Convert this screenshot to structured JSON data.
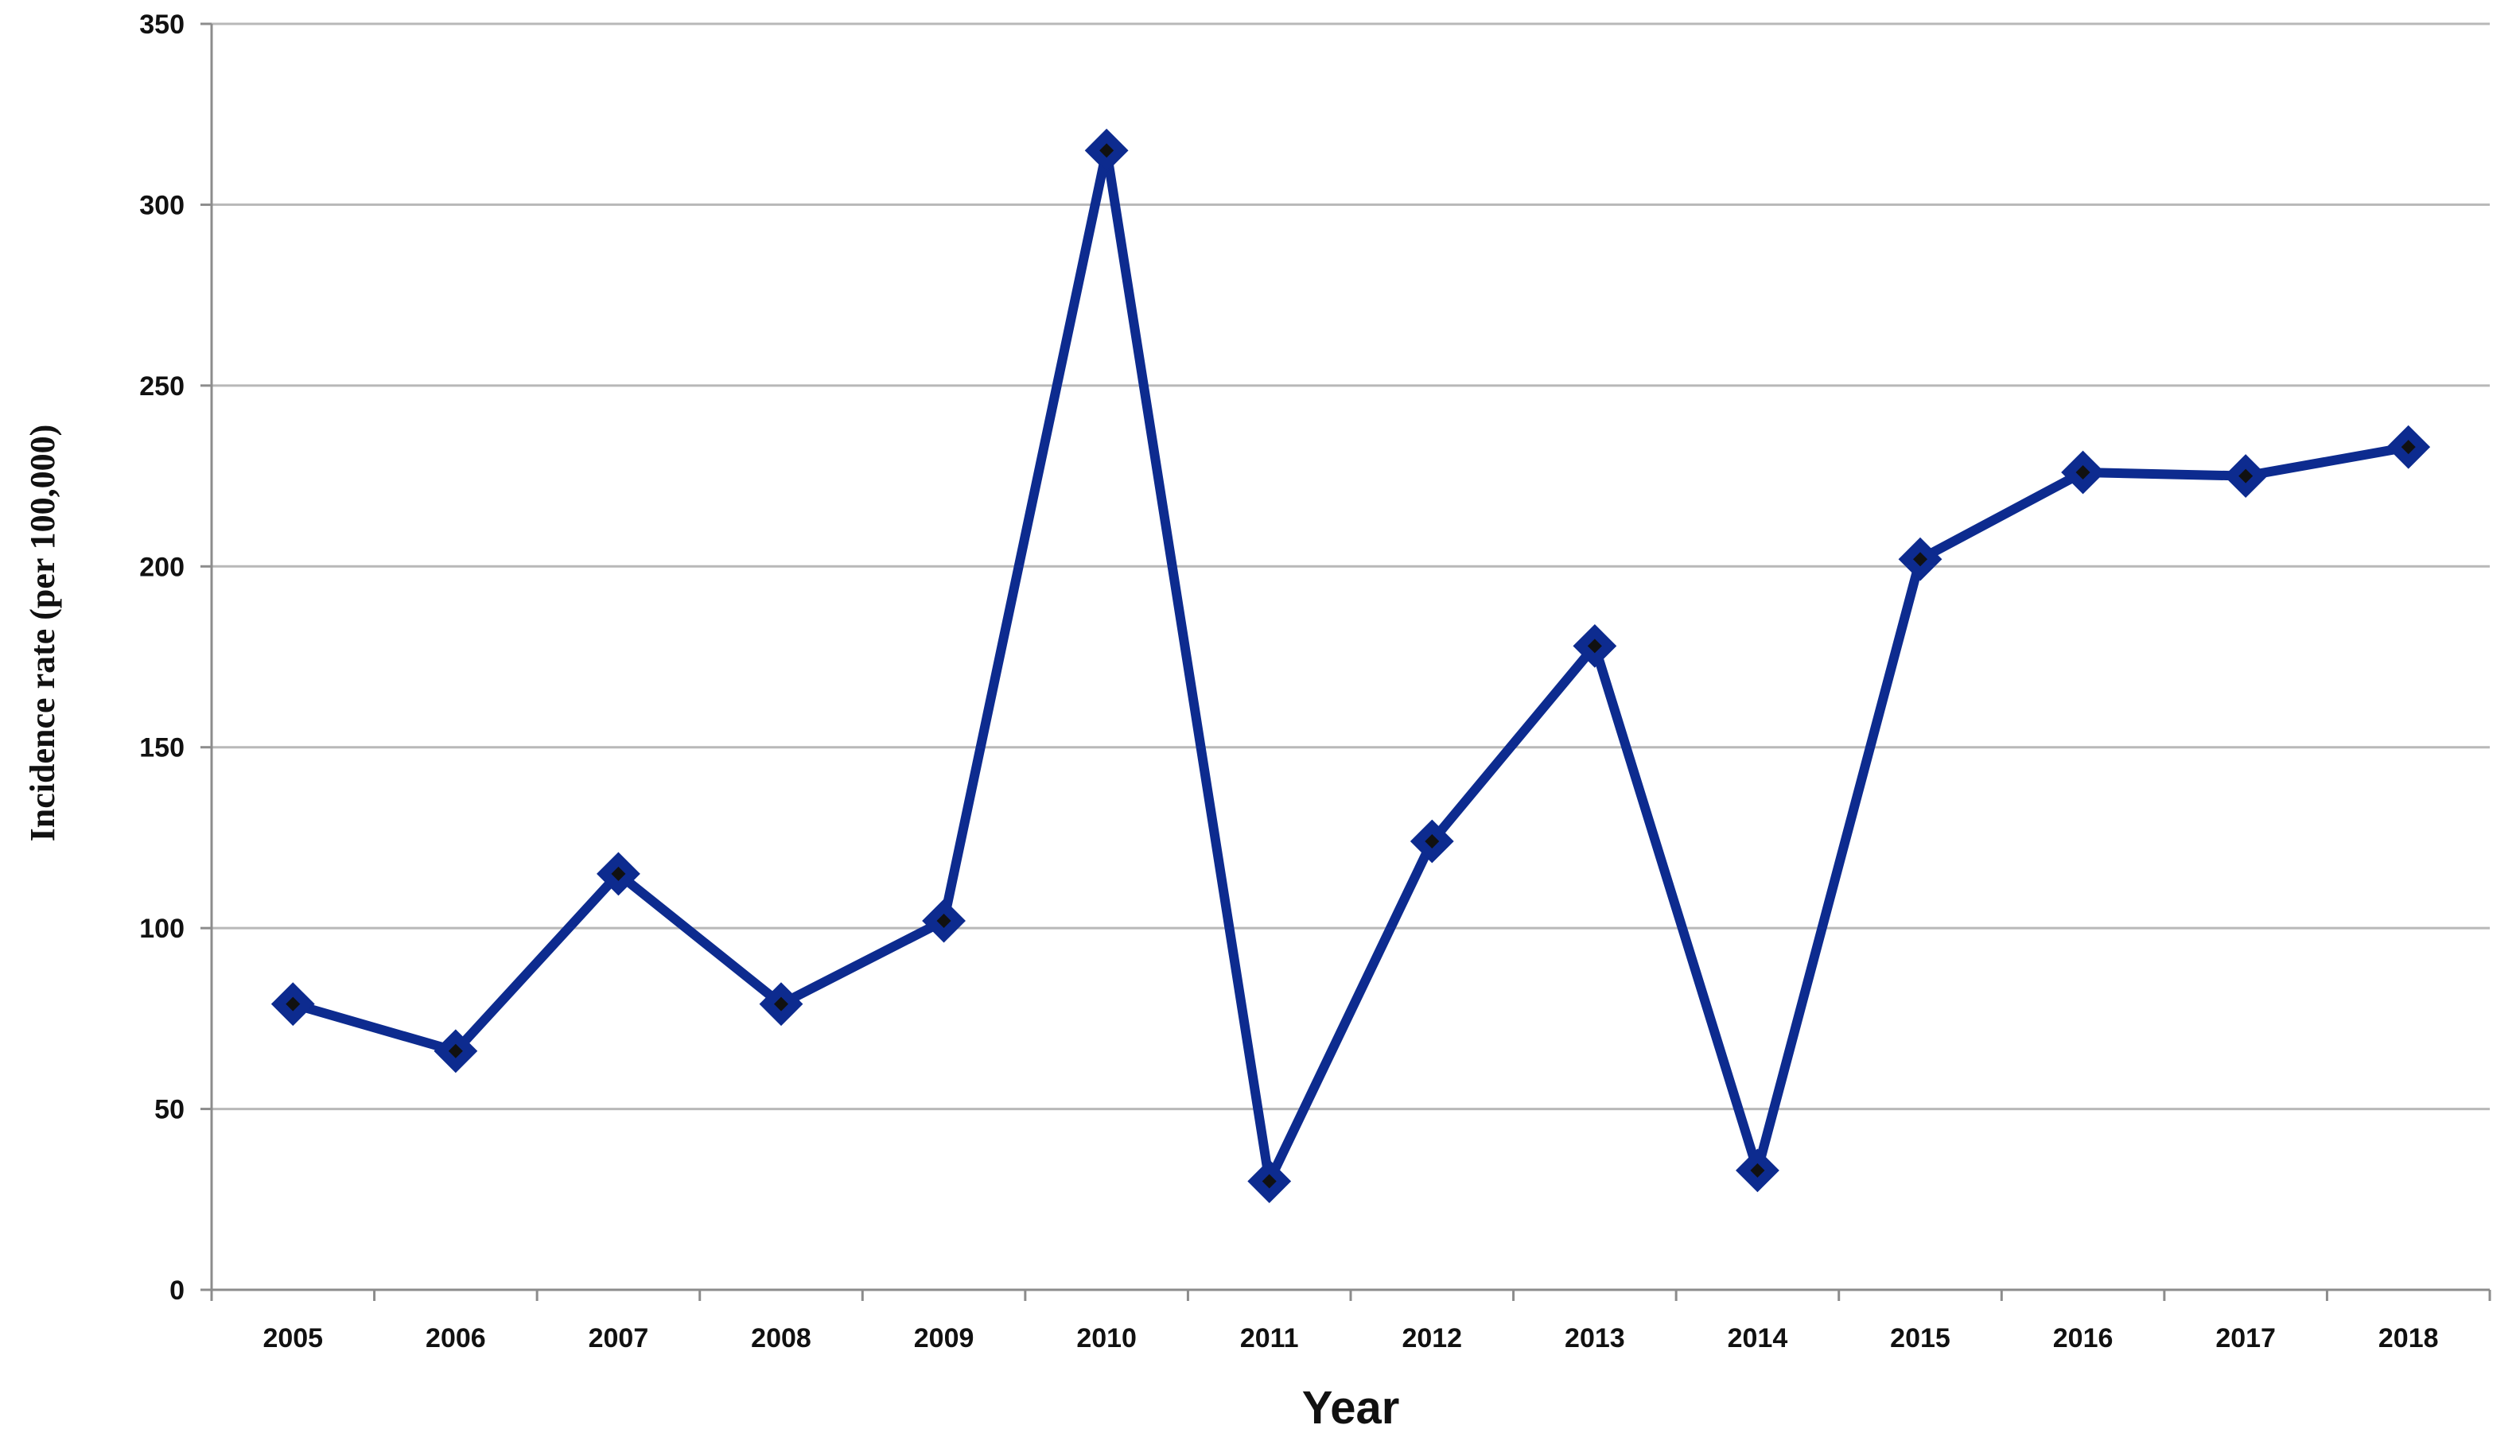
{
  "chart_data": {
    "type": "line",
    "title": "",
    "xlabel": "Year",
    "ylabel": "Incidence rate (per 100,000)",
    "categories": [
      "2005",
      "2006",
      "2007",
      "2008",
      "2009",
      "2010",
      "2011",
      "2012",
      "2013",
      "2014",
      "2015",
      "2016",
      "2017",
      "2018"
    ],
    "series": [
      {
        "values": [
          79,
          66,
          115,
          79,
          102,
          315,
          30,
          124,
          178,
          33,
          202,
          226,
          225,
          233
        ],
        "color": "#0d2b8f",
        "marker": "diamond",
        "marker_color": "#0d2b8f",
        "marker_center_color": "#111111"
      }
    ],
    "ylim": [
      0,
      350
    ],
    "yticks": [
      0,
      50,
      100,
      150,
      200,
      250,
      300,
      350
    ],
    "grid": {
      "horizontal": true,
      "vertical": false,
      "color": "#b8b8b8"
    },
    "legend": "none"
  }
}
